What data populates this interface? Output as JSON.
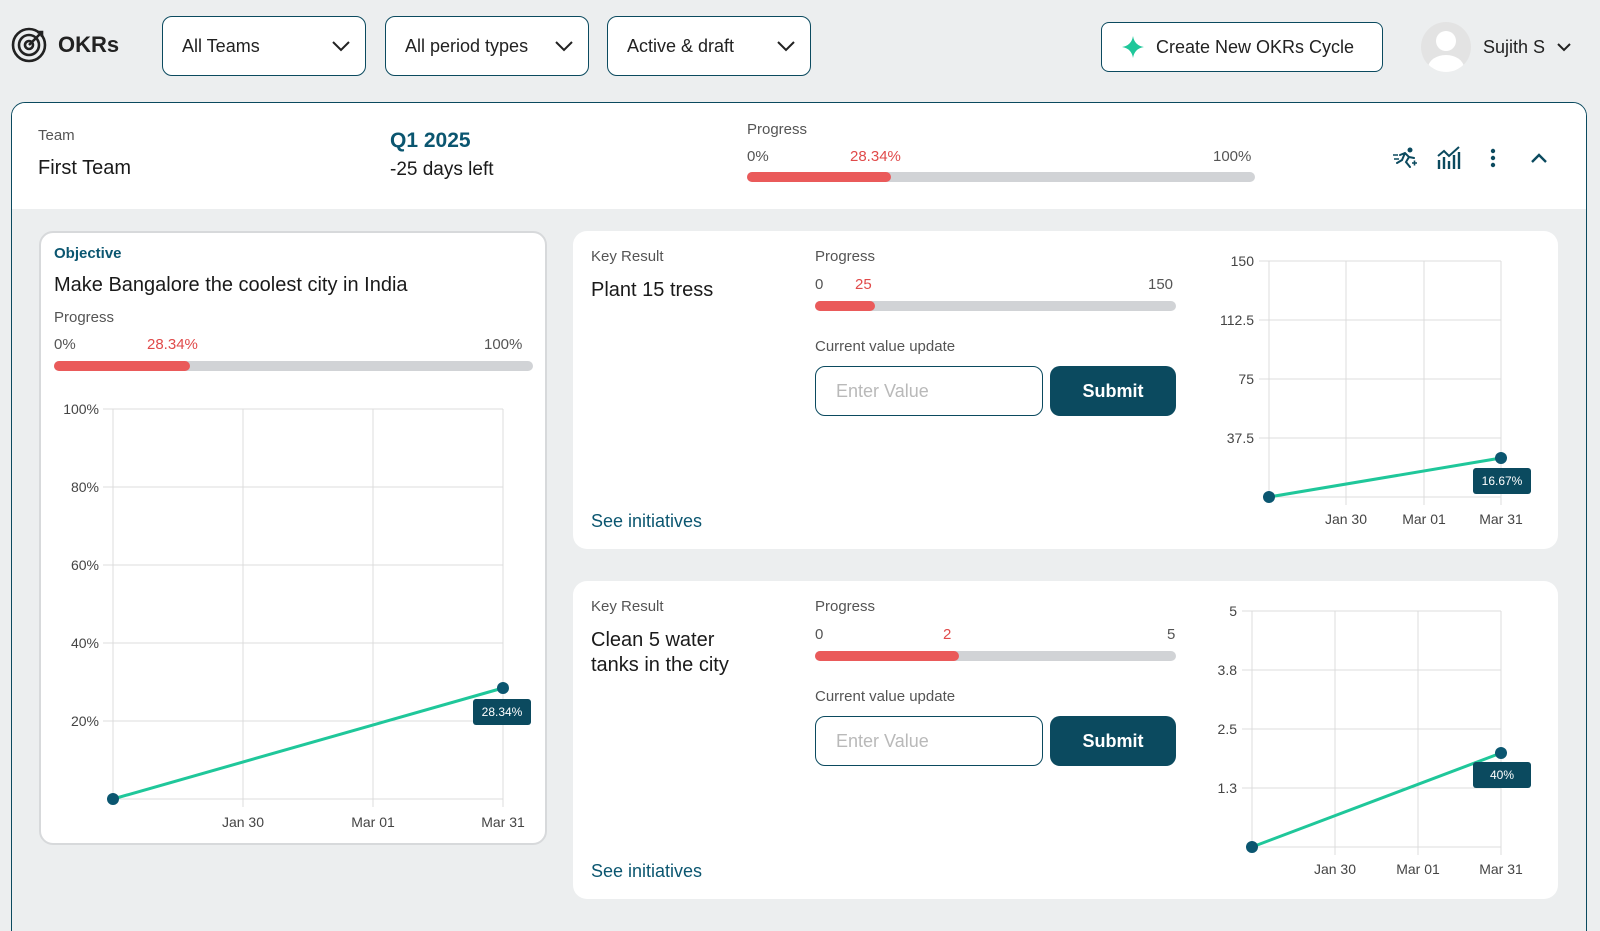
{
  "app": {
    "title": "OKRs"
  },
  "filters": {
    "teams": "All Teams",
    "period_types": "All period types",
    "status": "Active & draft"
  },
  "create_button": "Create New OKRs Cycle",
  "user": {
    "name": "Sujith S"
  },
  "cycle": {
    "team_label": "Team",
    "team_name": "First Team",
    "period": "Q1 2025",
    "days_left": "-25 days left",
    "progress_label": "Progress",
    "progress_min": "0%",
    "progress_value": "28.34%",
    "progress_max": "100%",
    "progress_fraction": 0.2834
  },
  "objective": {
    "label": "Objective",
    "title": "Make Bangalore the coolest city in India",
    "progress_label": "Progress",
    "progress_min": "0%",
    "progress_value": "28.34%",
    "progress_max": "100%",
    "progress_fraction": 0.2834,
    "chart": {
      "y_ticks": [
        "100%",
        "80%",
        "60%",
        "40%",
        "20%"
      ],
      "x_ticks": [
        "Jan 30",
        "Mar 01",
        "Mar 31"
      ],
      "tooltip": "28.34%"
    }
  },
  "key_results": [
    {
      "label": "Key Result",
      "title": "Plant 15 tress",
      "progress_label": "Progress",
      "progress_min": "0",
      "progress_value": "25",
      "progress_max": "150",
      "progress_fraction": 0.1667,
      "update_label": "Current value update",
      "input_placeholder": "Enter Value",
      "submit_label": "Submit",
      "link": "See initiatives",
      "chart": {
        "y_ticks": [
          "150",
          "112.5",
          "75",
          "37.5"
        ],
        "x_ticks": [
          "Jan 30",
          "Mar 01",
          "Mar 31"
        ],
        "tooltip": "16.67%"
      }
    },
    {
      "label": "Key Result",
      "title_line1": "Clean 5 water",
      "title_line2": "tanks in the city",
      "progress_label": "Progress",
      "progress_min": "0",
      "progress_value": "2",
      "progress_max": "5",
      "progress_fraction": 0.4,
      "update_label": "Current value update",
      "input_placeholder": "Enter Value",
      "submit_label": "Submit",
      "link": "See initiatives",
      "chart": {
        "y_ticks": [
          "5",
          "3.8",
          "2.5",
          "1.3"
        ],
        "x_ticks": [
          "Jan 30",
          "Mar 01",
          "Mar 31"
        ],
        "tooltip": "40%"
      }
    }
  ],
  "chart_data": [
    {
      "type": "line",
      "x": [
        "start",
        "Mar 31"
      ],
      "series": [
        {
          "values": [
            0,
            28.34
          ]
        }
      ],
      "ylim": [
        0,
        100
      ],
      "x_ticks": [
        "Jan 30",
        "Mar 01",
        "Mar 31"
      ],
      "y_ticks": [
        "100%",
        "80%",
        "60%",
        "40%",
        "20%"
      ],
      "grid": true
    },
    {
      "type": "line",
      "x": [
        "start",
        "Mar 31"
      ],
      "series": [
        {
          "values": [
            0,
            25
          ]
        }
      ],
      "ylim": [
        0,
        150
      ],
      "x_ticks": [
        "Jan 30",
        "Mar 01",
        "Mar 31"
      ],
      "y_ticks": [
        "150",
        "112.5",
        "75",
        "37.5"
      ],
      "grid": true
    },
    {
      "type": "line",
      "x": [
        "start",
        "Mar 31"
      ],
      "series": [
        {
          "values": [
            0,
            2
          ]
        }
      ],
      "ylim": [
        0,
        5
      ],
      "x_ticks": [
        "Jan 30",
        "Mar 01",
        "Mar 31"
      ],
      "y_ticks": [
        "5",
        "3.8",
        "2.5",
        "1.3"
      ],
      "grid": true
    }
  ],
  "colors": {
    "accent": "#0b4a5f",
    "line": "#1fc79a",
    "progress": "#ea5a5a",
    "track": "#d1d3d6"
  }
}
